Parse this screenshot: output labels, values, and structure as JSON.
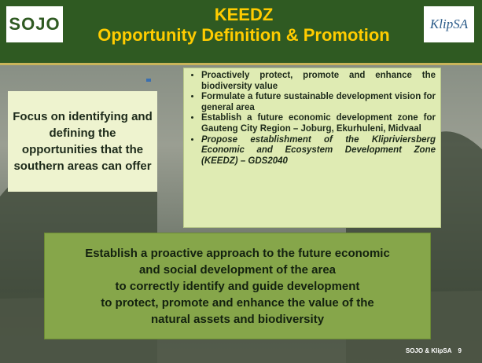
{
  "header": {
    "logo_left": "SOJO",
    "title": [
      "KEEDZ",
      "Opportunity Definition & Promotion"
    ],
    "logo_right": "KlipSA"
  },
  "left_box": "Focus on identifying and defining the opportunities that the southern areas can offer",
  "bullets": [
    "Proactively protect, promote and enhance the biodiversity value",
    "Formulate a future sustainable development vision for general area",
    "Establish a future economic development zone for Gauteng City Region – Joburg, Ekurhuleni, Midvaal",
    "Propose establishment of the Klipriviersberg Economic and Ecosystem Development Zone (KEEDZ) – GDS2040"
  ],
  "bottom_box": [
    "Establish a proactive approach to the future economic",
    "and social development of the area",
    "to correctly identify and guide development",
    "to protect, promote and enhance the value of the",
    "natural assets and biodiversity"
  ],
  "footer": {
    "text": "SOJO & KlipSA",
    "page": "9"
  }
}
